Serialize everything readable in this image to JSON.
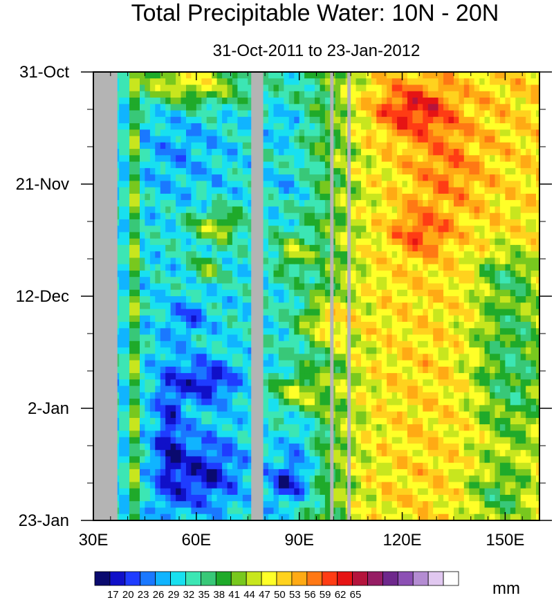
{
  "chart_data": {
    "type": "heatmap",
    "title": "Total Precipitable Water: 10N - 20N",
    "subtitle": "31-Oct-2011 to 23-Jan-2012",
    "xlabel": "",
    "ylabel": "",
    "x_range": [
      30,
      160
    ],
    "y_range_days": [
      0,
      84
    ],
    "x_ticks": [
      {
        "value": 30,
        "label": "30E"
      },
      {
        "value": 60,
        "label": "60E"
      },
      {
        "value": 90,
        "label": "90E"
      },
      {
        "value": 120,
        "label": "120E"
      },
      {
        "value": 150,
        "label": "150E"
      }
    ],
    "y_ticks": [
      {
        "day": 0,
        "label": "31-Oct"
      },
      {
        "day": 21,
        "label": "21-Nov"
      },
      {
        "day": 42,
        "label": "12-Dec"
      },
      {
        "day": 63,
        "label": "2-Jan"
      },
      {
        "day": 84,
        "label": "23-Jan"
      }
    ],
    "colorbar": {
      "units": "mm",
      "levels": [
        17,
        20,
        23,
        26,
        29,
        32,
        35,
        38,
        41,
        44,
        47,
        50,
        53,
        56,
        59,
        62,
        65
      ],
      "colors": [
        "#0a0a6e",
        "#1010c8",
        "#1f3cff",
        "#1a78ff",
        "#10b4ff",
        "#18e0f0",
        "#3ce6b4",
        "#38c878",
        "#1faa2a",
        "#78c81e",
        "#c8e61e",
        "#ffff28",
        "#ffd21e",
        "#ffaa14",
        "#ff7814",
        "#ff3c14",
        "#e61414",
        "#b4143c",
        "#961e64",
        "#6e288c",
        "#8c50b4",
        "#b48cd2",
        "#e1c8f0",
        "#ffffff"
      ]
    },
    "missing_bands_deg": [
      [
        30,
        37
      ],
      [
        76,
        79.5
      ],
      [
        99,
        100
      ],
      [
        104,
        105
      ]
    ],
    "approx_field_description_regions": [
      {
        "lon": [
          37,
          43
        ],
        "day": [
          0,
          84
        ],
        "tpw_mm": 30
      },
      {
        "lon": [
          43,
          75
        ],
        "day": [
          0,
          20
        ],
        "tpw_mm": 30
      },
      {
        "lon": [
          50,
          75
        ],
        "day": [
          52,
          84
        ],
        "tpw_mm": 21
      },
      {
        "lon": [
          80,
          95
        ],
        "day": [
          75,
          84
        ],
        "tpw_mm": 18
      },
      {
        "lon": [
          110,
          160
        ],
        "day": [
          0,
          84
        ],
        "tpw_mm": 52
      },
      {
        "lon": [
          115,
          130
        ],
        "day": [
          0,
          10
        ],
        "tpw_mm": 61
      }
    ]
  }
}
